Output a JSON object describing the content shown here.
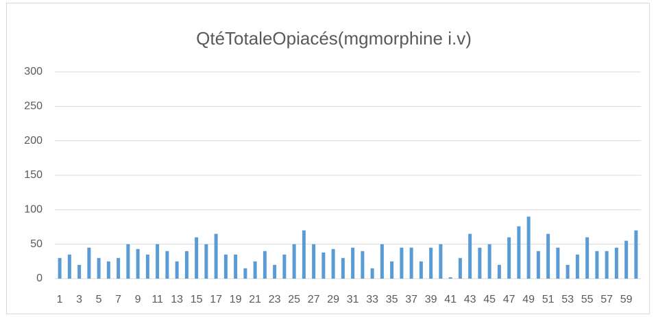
{
  "chart_data": {
    "type": "bar",
    "title": "QtéTotaleOpiacés(mgmorphine i.v)",
    "categories": [
      "1",
      null,
      "3",
      null,
      "5",
      null,
      "7",
      null,
      "9",
      null,
      "11",
      null,
      "13",
      null,
      "15",
      null,
      "17",
      null,
      "19",
      null,
      "21",
      null,
      "23",
      null,
      "25",
      null,
      "27",
      null,
      "29",
      null,
      "31",
      null,
      "33",
      null,
      "35",
      null,
      "37",
      null,
      "39",
      null,
      "41",
      null,
      "43",
      null,
      "45",
      null,
      "47",
      null,
      "49",
      null,
      "51",
      null,
      "53",
      null,
      "55",
      null,
      "57",
      null,
      "59",
      null
    ],
    "values": [
      30,
      35,
      20,
      45,
      30,
      25,
      30,
      50,
      43,
      35,
      50,
      40,
      25,
      40,
      60,
      50,
      65,
      35,
      35,
      15,
      25,
      40,
      20,
      35,
      50,
      70,
      50,
      38,
      43,
      30,
      45,
      40,
      15,
      50,
      25,
      45,
      45,
      25,
      45,
      50,
      2,
      30,
      65,
      45,
      50,
      20,
      60,
      76,
      90,
      40,
      65,
      45,
      20,
      35,
      60,
      40,
      40,
      45,
      55,
      70
    ],
    "color": "#5b9bd5",
    "ylim": [
      0,
      300
    ],
    "yticks": [
      0,
      50,
      100,
      150,
      200,
      250,
      300
    ],
    "grid": true
  }
}
